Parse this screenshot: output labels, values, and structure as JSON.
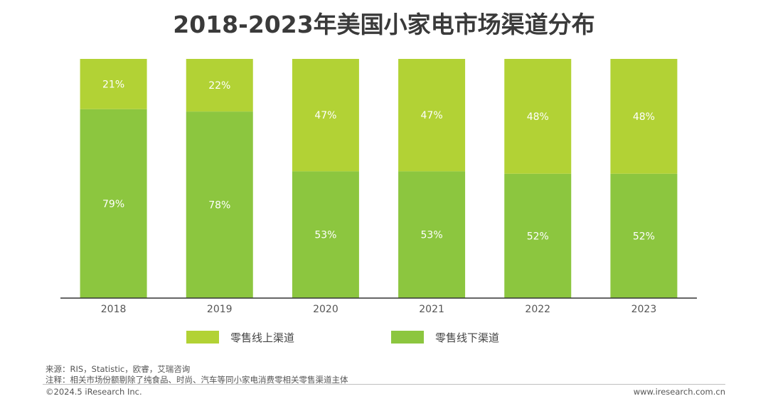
{
  "title": "2018-2023年美国小家电市场渠道分布",
  "chart_data": {
    "type": "bar",
    "stacked": true,
    "percent": true,
    "categories": [
      "2018",
      "2019",
      "2020",
      "2021",
      "2022",
      "2023"
    ],
    "series": [
      {
        "name": "零售线下渠道",
        "values": [
          79,
          78,
          53,
          53,
          52,
          52
        ],
        "color": "#8cc63f"
      },
      {
        "name": "零售线上渠道",
        "values": [
          21,
          22,
          47,
          47,
          48,
          48
        ],
        "color": "#b2d235"
      }
    ],
    "legend_order": [
      "零售线上渠道",
      "零售线下渠道"
    ],
    "ylim": [
      0,
      100
    ],
    "value_suffix": "%",
    "legend_position": "bottom",
    "grid": false
  },
  "footer": {
    "source": "来源：RIS，Statistic，欧睿，艾瑞咨询",
    "note": "注释：相关市场份额剔除了纯食品、时尚、汽车等同小家电消费零相关零售渠道主体",
    "copyright": "©2024.5 iResearch Inc.",
    "website": "www.iresearch.com.cn"
  }
}
